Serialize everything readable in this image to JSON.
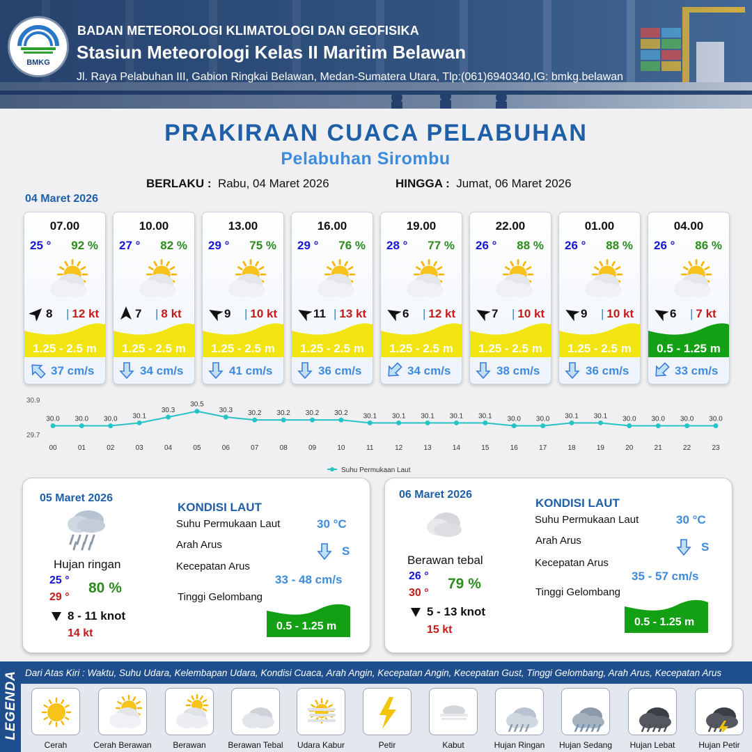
{
  "header": {
    "logo_text": "BMKG",
    "agency": "BADAN METEOROLOGI KLIMATOLOGI DAN GEOFISIKA",
    "station": "Stasiun Meteorologi Kelas II Maritim Belawan",
    "address": "Jl. Raya Pelabuhan III, Gabion Ringkai Belawan, Medan-Sumatera Utara, Tlp:(061)6940340,IG: bmkg.belawan"
  },
  "title": "PRAKIRAAN CUACA PELABUHAN",
  "subtitle": "Pelabuhan Sirombu",
  "validity": {
    "from_label": "BERLAKU :",
    "from_value": "Rabu, 04 Maret 2026",
    "to_label": "HINGGA :",
    "to_value": "Jumat, 06 Maret 2026"
  },
  "day1_date": "04 Maret 2026",
  "forecasts": [
    {
      "time": "07.00",
      "temp": "25 °",
      "hum": "92 %",
      "wind": "8",
      "gust": "12 kt",
      "wave": "1.25 - 2.5 m",
      "current": "37 cm/s",
      "wind_dir_deg": 45,
      "current_dir_deg": 315,
      "wave_color": "#f2e411",
      "icon": "cerah-berawan-icon"
    },
    {
      "time": "10.00",
      "temp": "27 °",
      "hum": "82 %",
      "wind": "7",
      "gust": "8 kt",
      "wave": "1.25 - 2.5 m",
      "current": "34 cm/s",
      "wind_dir_deg": 0,
      "current_dir_deg": 180,
      "wave_color": "#f2e411",
      "icon": "cerah-berawan-icon"
    },
    {
      "time": "13.00",
      "temp": "29 °",
      "hum": "75 %",
      "wind": "9",
      "gust": "10 kt",
      "wave": "1.25 - 2.5 m",
      "current": "41 cm/s",
      "wind_dir_deg": 300,
      "current_dir_deg": 180,
      "wave_color": "#f2e411",
      "icon": "cerah-berawan-icon"
    },
    {
      "time": "16.00",
      "temp": "29 °",
      "hum": "76 %",
      "wind": "11",
      "gust": "13 kt",
      "wave": "1.25 - 2.5 m",
      "current": "36 cm/s",
      "wind_dir_deg": 300,
      "current_dir_deg": 180,
      "wave_color": "#f2e411",
      "icon": "cerah-berawan-icon"
    },
    {
      "time": "19.00",
      "temp": "28 °",
      "hum": "77 %",
      "wind": "6",
      "gust": "12 kt",
      "wave": "1.25 - 2.5 m",
      "current": "34 cm/s",
      "wind_dir_deg": 300,
      "current_dir_deg": 225,
      "wave_color": "#f2e411",
      "icon": "cerah-berawan-icon"
    },
    {
      "time": "22.00",
      "temp": "26 °",
      "hum": "88 %",
      "wind": "7",
      "gust": "10 kt",
      "wave": "1.25 - 2.5 m",
      "current": "38 cm/s",
      "wind_dir_deg": 300,
      "current_dir_deg": 180,
      "wave_color": "#f2e411",
      "icon": "cerah-berawan-icon"
    },
    {
      "time": "01.00",
      "temp": "26 °",
      "hum": "88 %",
      "wind": "9",
      "gust": "10 kt",
      "wave": "1.25 - 2.5 m",
      "current": "36 cm/s",
      "wind_dir_deg": 300,
      "current_dir_deg": 180,
      "wave_color": "#f2e411",
      "icon": "cerah-berawan-icon"
    },
    {
      "time": "04.00",
      "temp": "26 °",
      "hum": "86 %",
      "wind": "6",
      "gust": "7 kt",
      "wave": "0.5 - 1.25 m",
      "current": "33 cm/s",
      "wind_dir_deg": 300,
      "current_dir_deg": 225,
      "wave_color": "#14a014",
      "icon": "cerah-berawan-icon"
    }
  ],
  "chart_data": {
    "type": "line",
    "x": [
      "00",
      "01",
      "02",
      "03",
      "04",
      "05",
      "06",
      "07",
      "08",
      "09",
      "10",
      "11",
      "12",
      "13",
      "14",
      "15",
      "16",
      "17",
      "18",
      "19",
      "20",
      "21",
      "22",
      "23"
    ],
    "series": [
      {
        "name": "Suhu Permukaan Laut",
        "values": [
          30.0,
          30.0,
          30.0,
          30.1,
          30.3,
          30.5,
          30.3,
          30.2,
          30.2,
          30.2,
          30.2,
          30.1,
          30.1,
          30.1,
          30.1,
          30.1,
          30.0,
          30.0,
          30.1,
          30.1,
          30.0,
          30.0,
          30.0,
          30.0
        ],
        "labels": [
          "30.0",
          "30.0",
          "30.0",
          "30.1",
          "30.3",
          "30.5",
          "30.3",
          "30.2",
          "30.2",
          "30.2",
          "30.2",
          "30.1",
          "30.1",
          "30.1",
          "30.1",
          "30.1",
          "30.0",
          "30.0",
          "30.1",
          "30.1",
          "30.0",
          "30.0",
          "30.0",
          "30.0"
        ]
      }
    ],
    "ylim": [
      29.7,
      30.9
    ],
    "ytick_labels": [
      "30.9",
      "29.7"
    ],
    "line_color": "#26c2c4",
    "legend_position": "bottom-center"
  },
  "day2": {
    "date": "05 Maret 2026",
    "condition": "Hujan ringan",
    "tmin": "25 °",
    "tmax": "29 °",
    "hum": "80 %",
    "wind": "8  - 11 knot",
    "gust": "14 kt",
    "heading": "KONDISI LAUT",
    "sst_label": "Suhu Permukaan Laut",
    "sst_value": "30 °C",
    "dir_label": "Arah Arus",
    "dir_value": "S",
    "speed_label": "Kecepatan Arus",
    "speed_value": "33 - 48 cm/s",
    "wave_label": "Tinggi Gelombang",
    "wave_value": "0.5 - 1.25 m",
    "icon": "hujan-ringan-icon"
  },
  "day3": {
    "date": "06 Maret 2026",
    "condition": "Berawan tebal",
    "tmin": "26 °",
    "tmax": "30 °",
    "hum": "79 %",
    "wind": "5  - 13 knot",
    "gust": "15 kt",
    "heading": "KONDISI LAUT",
    "sst_label": "Suhu Permukaan Laut",
    "sst_value": "30 °C",
    "dir_label": "Arah Arus",
    "dir_value": "S",
    "speed_label": "Kecepatan Arus",
    "speed_value": "35  - 57 cm/s",
    "wave_label": "Tinggi Gelombang",
    "wave_value": "0.5 - 1.25 m",
    "icon": "berawan-tebal-icon"
  },
  "legend": {
    "side_label": "LEGENDA",
    "note": "Dari Atas Kiri : Waktu, Suhu Udara, Kelembapan Udara, Kondisi Cuaca, Arah Angin, Kecepatan Angin, Kecepatan Gust, Tinggi Gelombang, Arah Arus, Kecepatan Arus",
    "items": [
      {
        "label": "Cerah",
        "icon": "cerah-icon"
      },
      {
        "label": "Cerah Berawan",
        "icon": "cerah-berawan-icon"
      },
      {
        "label": "Berawan",
        "icon": "berawan-icon"
      },
      {
        "label": "Berawan Tebal",
        "icon": "berawan-tebal-icon"
      },
      {
        "label": "Udara Kabur",
        "icon": "udara-kabur-icon"
      },
      {
        "label": "Petir",
        "icon": "petir-icon"
      },
      {
        "label": "Kabut",
        "icon": "kabut-icon"
      },
      {
        "label": "Hujan Ringan",
        "icon": "hujan-ringan-icon"
      },
      {
        "label": "Hujan Sedang",
        "icon": "hujan-sedang-icon"
      },
      {
        "label": "Hujan Lebat",
        "icon": "hujan-lebat-icon"
      },
      {
        "label": "Hujan Petir",
        "icon": "hujan-petir-icon"
      }
    ]
  }
}
